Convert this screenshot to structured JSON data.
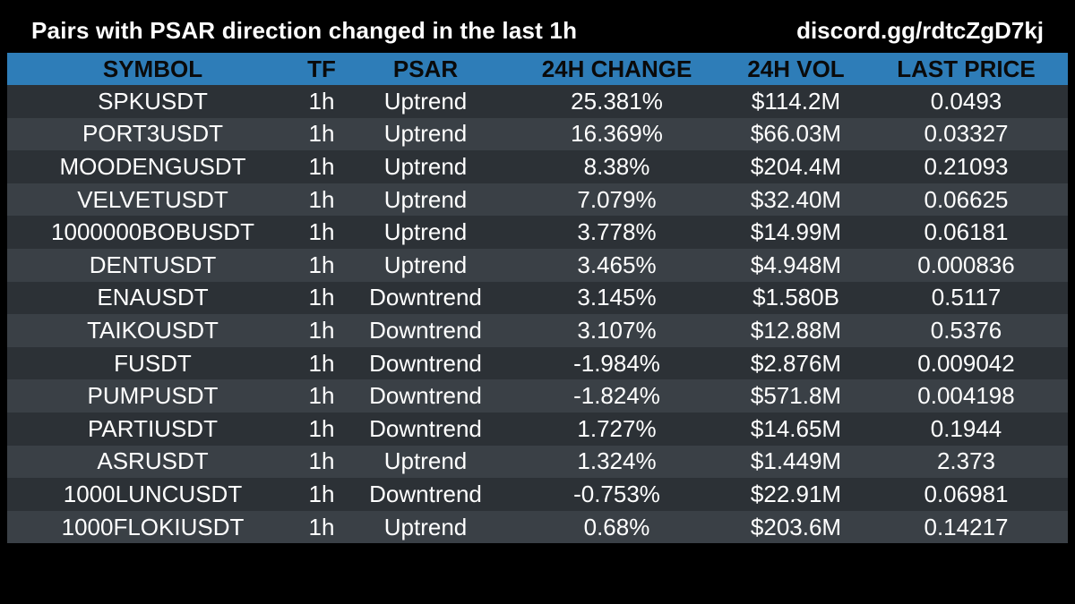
{
  "header": {
    "title": "Pairs with PSAR direction changed in the last 1h",
    "invite": "discord.gg/rdtcZgD7kj"
  },
  "colors": {
    "background": "#000000",
    "header_row": "#2e7db8",
    "row_dark": "#2c3136",
    "row_light": "#3a4046",
    "text": "#ffffff"
  },
  "table": {
    "columns": [
      "SYMBOL",
      "TF",
      "PSAR",
      "24H CHANGE",
      "24H VOL",
      "LAST PRICE"
    ],
    "rows": [
      [
        "SPKUSDT",
        "1h",
        "Uptrend",
        "25.381%",
        "$114.2M",
        "0.0493"
      ],
      [
        "PORT3USDT",
        "1h",
        "Uptrend",
        "16.369%",
        "$66.03M",
        "0.03327"
      ],
      [
        "MOODENGUSDT",
        "1h",
        "Uptrend",
        "8.38%",
        "$204.4M",
        "0.21093"
      ],
      [
        "VELVETUSDT",
        "1h",
        "Uptrend",
        "7.079%",
        "$32.40M",
        "0.06625"
      ],
      [
        "1000000BOBUSDT",
        "1h",
        "Uptrend",
        "3.778%",
        "$14.99M",
        "0.06181"
      ],
      [
        "DENTUSDT",
        "1h",
        "Uptrend",
        "3.465%",
        "$4.948M",
        "0.000836"
      ],
      [
        "ENAUSDT",
        "1h",
        "Downtrend",
        "3.145%",
        "$1.580B",
        "0.5117"
      ],
      [
        "TAIKOUSDT",
        "1h",
        "Downtrend",
        "3.107%",
        "$12.88M",
        "0.5376"
      ],
      [
        "FUSDT",
        "1h",
        "Downtrend",
        "-1.984%",
        "$2.876M",
        "0.009042"
      ],
      [
        "PUMPUSDT",
        "1h",
        "Downtrend",
        "-1.824%",
        "$571.8M",
        "0.004198"
      ],
      [
        "PARTIUSDT",
        "1h",
        "Downtrend",
        "1.727%",
        "$14.65M",
        "0.1944"
      ],
      [
        "ASRUSDT",
        "1h",
        "Uptrend",
        "1.324%",
        "$1.449M",
        "2.373"
      ],
      [
        "1000LUNCUSDT",
        "1h",
        "Downtrend",
        "-0.753%",
        "$22.91M",
        "0.06981"
      ],
      [
        "1000FLOKIUSDT",
        "1h",
        "Uptrend",
        "0.68%",
        "$203.6M",
        "0.14217"
      ]
    ]
  }
}
